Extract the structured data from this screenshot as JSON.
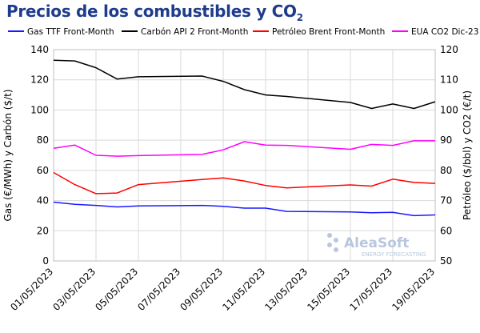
{
  "title": "Precios de los combustibles y CO",
  "title_sub": "2",
  "colors": {
    "gas": "#1a1aff",
    "coal": "#000000",
    "brent": "#ff0000",
    "eua": "#ff00ff",
    "grid": "#d9d9d9",
    "title": "#1f3b8c"
  },
  "watermark": {
    "brand": "AleaSoft",
    "tagline": "ENERGY FORECASTING"
  },
  "chart_data": {
    "type": "line",
    "x": [
      "01/05/2023",
      "02/05/2023",
      "03/05/2023",
      "04/05/2023",
      "05/05/2023",
      "08/05/2023",
      "09/05/2023",
      "10/05/2023",
      "11/05/2023",
      "12/05/2023",
      "15/05/2023",
      "16/05/2023",
      "17/05/2023",
      "18/05/2023",
      "19/05/2023"
    ],
    "x_tick_labels": [
      "01/05/2023",
      "03/05/2023",
      "05/05/2023",
      "07/05/2023",
      "09/05/2023",
      "11/05/2023",
      "13/05/2023",
      "15/05/2023",
      "17/05/2023",
      "19/05/2023"
    ],
    "x_range": [
      "01/05/2023",
      "19/05/2023"
    ],
    "ylabel_left": "Gas (€/MWh) y Carbón ($/t)",
    "ylabel_right": "Petróleo ($/bbl) y CO2 (€/t)",
    "ylim_left": [
      0,
      140
    ],
    "ylim_right": [
      50,
      120
    ],
    "yticks_left": [
      0,
      20,
      40,
      60,
      80,
      100,
      120,
      140
    ],
    "yticks_right": [
      50,
      60,
      70,
      80,
      90,
      100,
      110,
      120
    ],
    "grid": true,
    "legend_position": "top",
    "series": [
      {
        "name": "Gas TTF Front-Month",
        "axis": "left",
        "color_key": "gas",
        "points": [
          [
            "01/05/2023",
            39
          ],
          [
            "02/05/2023",
            37.5
          ],
          [
            "03/05/2023",
            36.8
          ],
          [
            "04/05/2023",
            35.8
          ],
          [
            "05/05/2023",
            36.5
          ],
          [
            "08/05/2023",
            36.8
          ],
          [
            "09/05/2023",
            36.2
          ],
          [
            "10/05/2023",
            35
          ],
          [
            "11/05/2023",
            35
          ],
          [
            "12/05/2023",
            32.8
          ],
          [
            "15/05/2023",
            32.5
          ],
          [
            "16/05/2023",
            32
          ],
          [
            "17/05/2023",
            32.2
          ],
          [
            "18/05/2023",
            30
          ],
          [
            "19/05/2023",
            30.5
          ]
        ]
      },
      {
        "name": "Carbón API 2 Front-Month",
        "axis": "left",
        "color_key": "coal",
        "points": [
          [
            "01/05/2023",
            133
          ],
          [
            "02/05/2023",
            132.5
          ],
          [
            "03/05/2023",
            128
          ],
          [
            "04/05/2023",
            120.5
          ],
          [
            "05/05/2023",
            122
          ],
          [
            "08/05/2023",
            122.5
          ],
          [
            "09/05/2023",
            119
          ],
          [
            "10/05/2023",
            113.5
          ],
          [
            "11/05/2023",
            110
          ],
          [
            "12/05/2023",
            109
          ],
          [
            "15/05/2023",
            105
          ],
          [
            "16/05/2023",
            101
          ],
          [
            "17/05/2023",
            104
          ],
          [
            "18/05/2023",
            101
          ],
          [
            "19/05/2023",
            105.5
          ]
        ]
      },
      {
        "name": "Petróleo Brent Front-Month",
        "axis": "right",
        "color_key": "brent",
        "points": [
          [
            "01/05/2023",
            79.3
          ],
          [
            "02/05/2023",
            75.3
          ],
          [
            "03/05/2023",
            72.3
          ],
          [
            "04/05/2023",
            72.5
          ],
          [
            "05/05/2023",
            75.3
          ],
          [
            "08/05/2023",
            77
          ],
          [
            "09/05/2023",
            77.5
          ],
          [
            "10/05/2023",
            76.5
          ],
          [
            "11/05/2023",
            75
          ],
          [
            "12/05/2023",
            74.2
          ],
          [
            "15/05/2023",
            75.2
          ],
          [
            "16/05/2023",
            74.8
          ],
          [
            "17/05/2023",
            77.1
          ],
          [
            "18/05/2023",
            76
          ],
          [
            "19/05/2023",
            75.7
          ]
        ]
      },
      {
        "name": "EUA CO2 Dic-23",
        "axis": "right",
        "color_key": "eua",
        "points": [
          [
            "01/05/2023",
            87.3
          ],
          [
            "02/05/2023",
            88.4
          ],
          [
            "03/05/2023",
            85
          ],
          [
            "04/05/2023",
            84.7
          ],
          [
            "05/05/2023",
            84.9
          ],
          [
            "08/05/2023",
            85.3
          ],
          [
            "09/05/2023",
            86.8
          ],
          [
            "10/05/2023",
            89.5
          ],
          [
            "11/05/2023",
            88.4
          ],
          [
            "12/05/2023",
            88.3
          ],
          [
            "15/05/2023",
            87
          ],
          [
            "16/05/2023",
            88.6
          ],
          [
            "17/05/2023",
            88.3
          ],
          [
            "18/05/2023",
            89.8
          ],
          [
            "19/05/2023",
            89.8
          ]
        ]
      }
    ]
  }
}
